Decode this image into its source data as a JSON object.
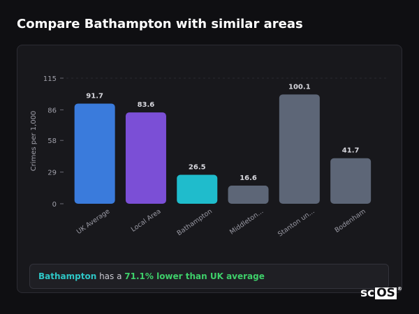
{
  "page": {
    "title": "Compare Bathampton with similar areas"
  },
  "summary": {
    "area": "Bathampton",
    "middle": " has a ",
    "stat": "71.1% lower than UK average"
  },
  "logo": {
    "text": "sc",
    "box": "OS",
    "mark": "®"
  },
  "colors": {
    "uk": "#3a7bdc",
    "local": "#7b4fd6",
    "highlight": "#1fbccc",
    "other": "#5d6677"
  },
  "chart_data": {
    "type": "bar",
    "title": "",
    "xlabel": "",
    "ylabel": "Crimes per 1,000",
    "ylim": [
      0,
      115
    ],
    "yticks": [
      0,
      29,
      58,
      86,
      115
    ],
    "grid": false,
    "categories": [
      "UK Average",
      "Local Area",
      "Bathampton",
      "Middleton...",
      "Stanton un...",
      "Bodenham"
    ],
    "values": [
      91.7,
      83.6,
      26.5,
      16.6,
      100.1,
      41.7
    ],
    "value_labels": [
      "91.7",
      "83.6",
      "26.5",
      "16.6",
      "100.1",
      "41.7"
    ],
    "bar_colors": [
      "#3a7bdc",
      "#7b4fd6",
      "#1fbccc",
      "#5d6677",
      "#5d6677",
      "#5d6677"
    ]
  }
}
